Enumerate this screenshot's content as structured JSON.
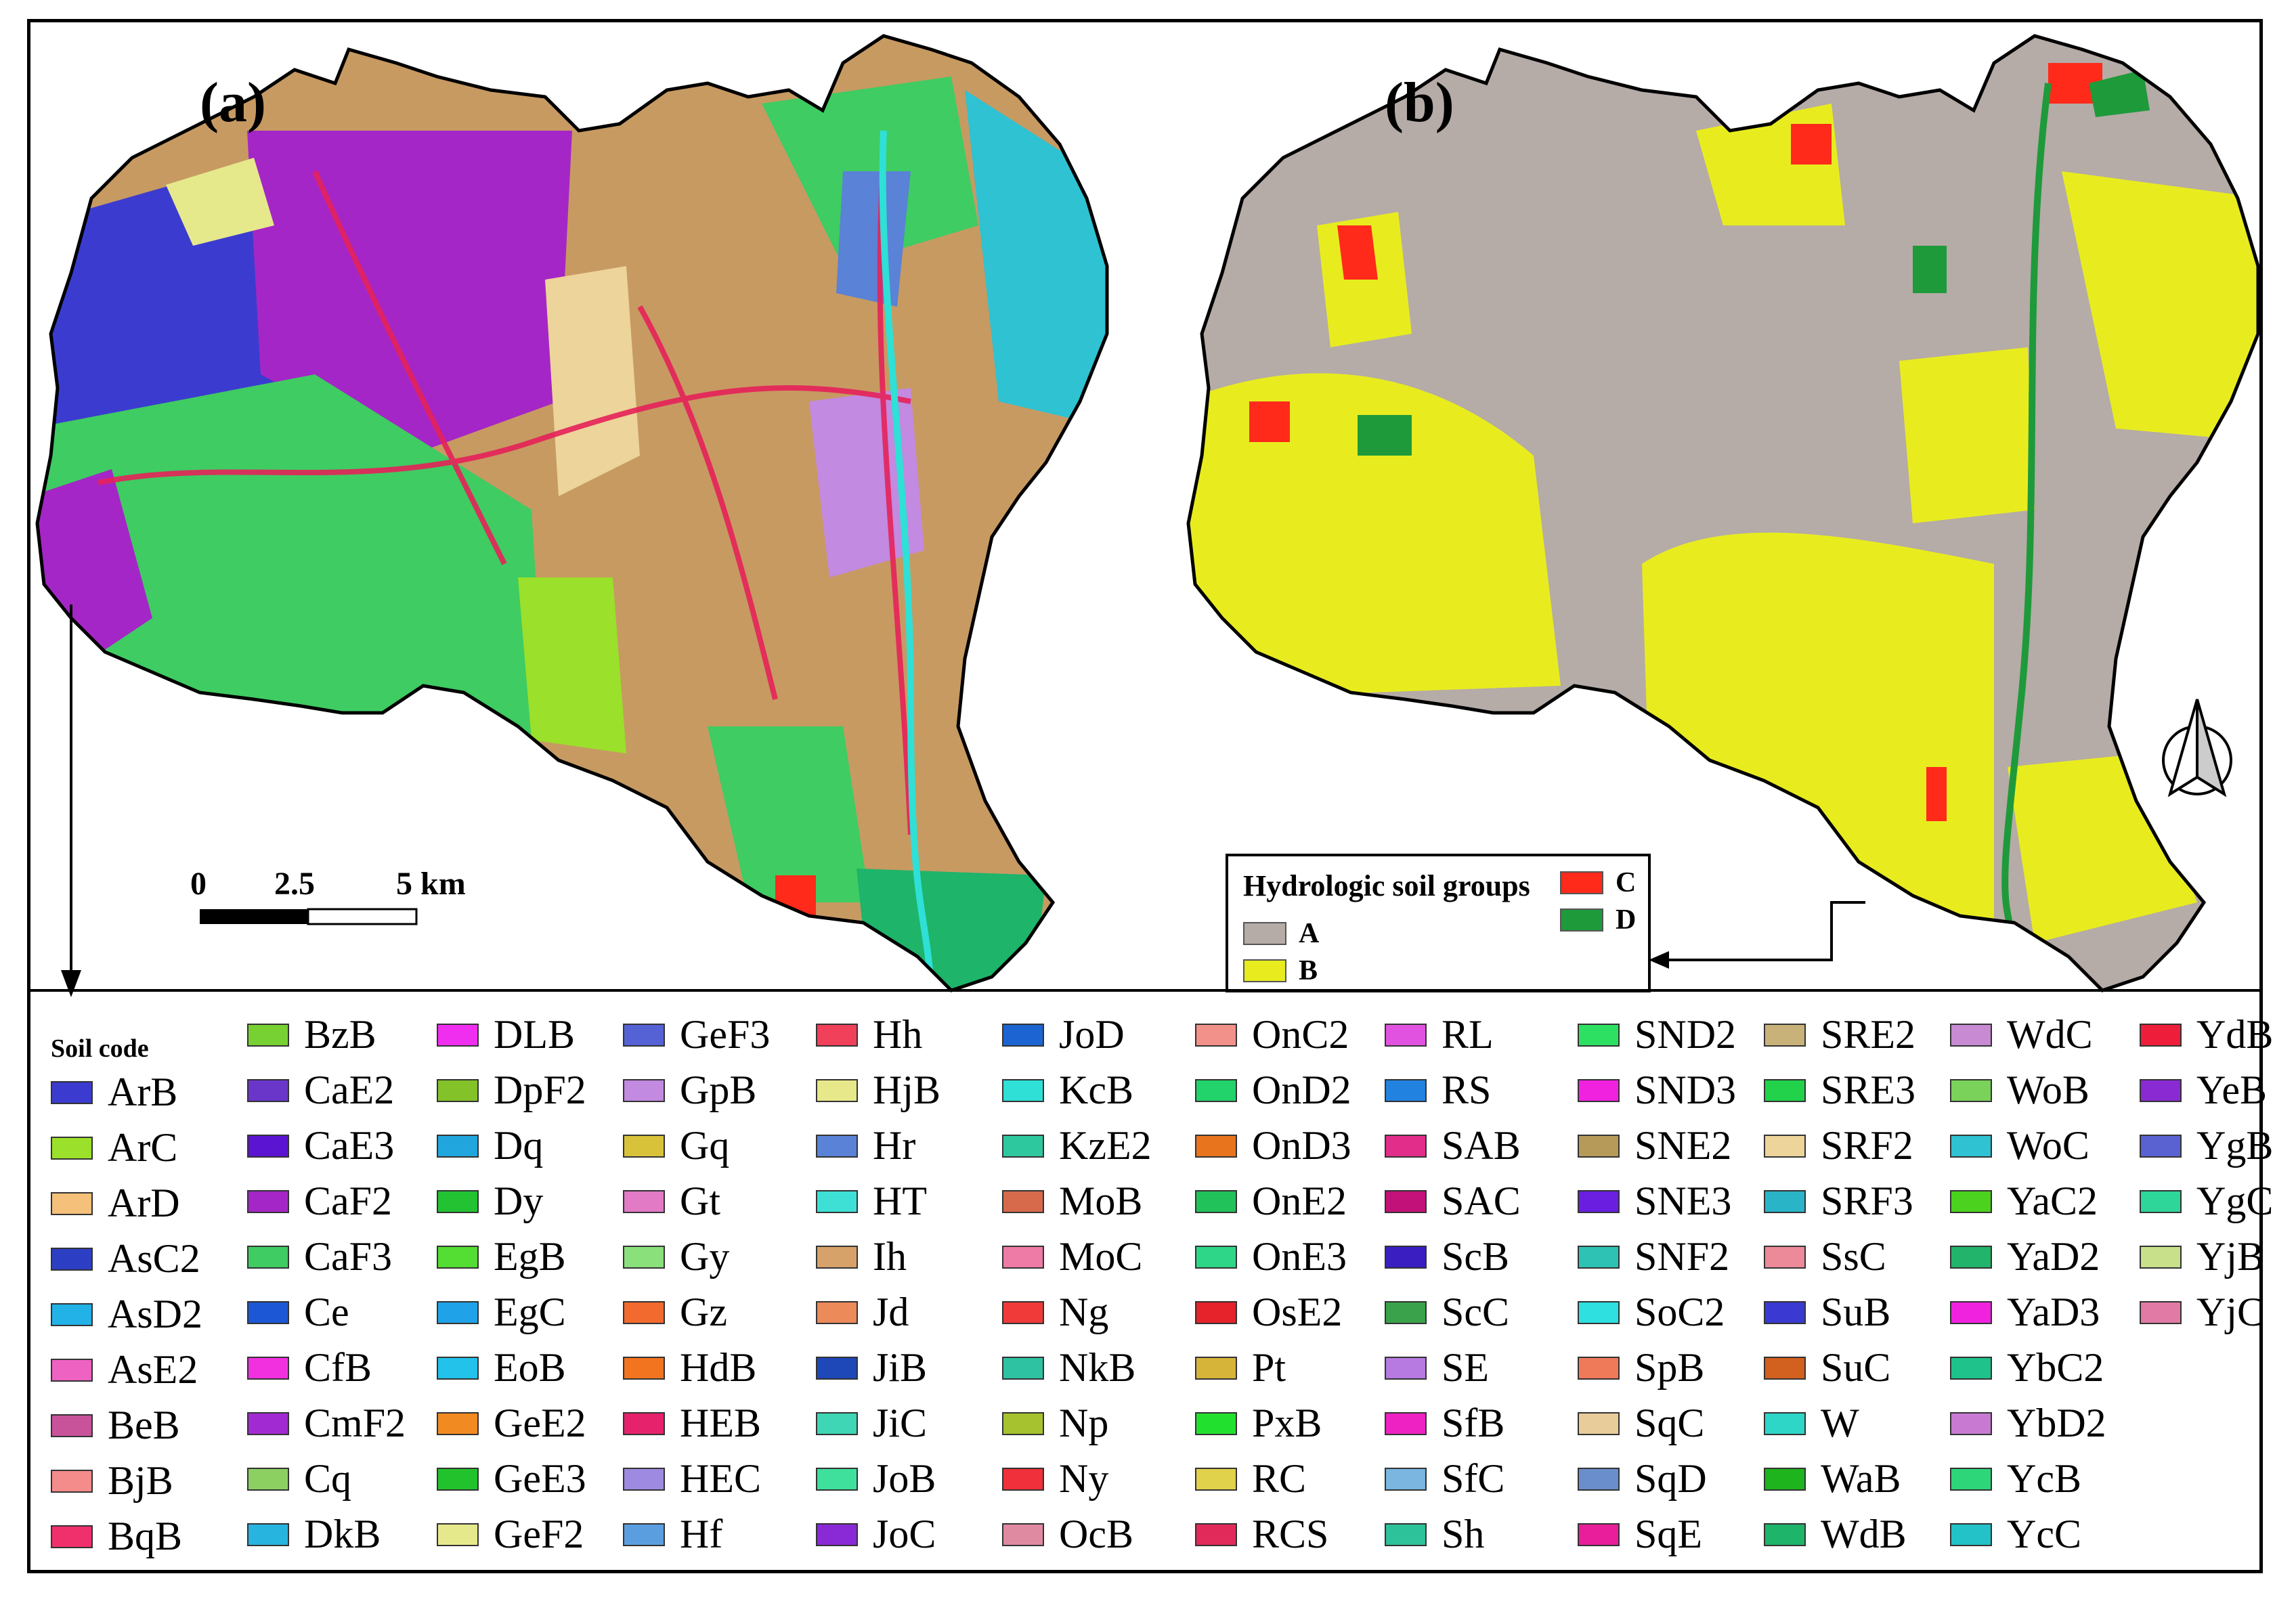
{
  "panels": {
    "a": {
      "label": "(a)"
    },
    "b": {
      "label": "(b)"
    }
  },
  "scale_bar": {
    "zero": "0",
    "mid": "2.5",
    "end": "5 km"
  },
  "hsg_legend": {
    "title": "Hydrologic soil groups",
    "items": [
      {
        "code": "A",
        "color": "#b5aba7"
      },
      {
        "code": "B",
        "color": "#e8ec1f"
      },
      {
        "code": "C",
        "color": "#ff2a1a"
      },
      {
        "code": "D",
        "color": "#1e9a3a"
      }
    ]
  },
  "soil_legend": {
    "title": "Soil code",
    "columns": [
      [
        {
          "code": "ArB",
          "color": "#3b3ccf"
        },
        {
          "code": "ArC",
          "color": "#9be02a"
        },
        {
          "code": "ArD",
          "color": "#f4c07a"
        },
        {
          "code": "AsC2",
          "color": "#2c3fc4"
        },
        {
          "code": "AsD2",
          "color": "#22b2e8"
        },
        {
          "code": "AsE2",
          "color": "#ee62c2"
        },
        {
          "code": "BeB",
          "color": "#c9539b"
        },
        {
          "code": "BjB",
          "color": "#f58c8c"
        },
        {
          "code": "BqB",
          "color": "#f0306c"
        }
      ],
      [
        {
          "code": "BzB",
          "color": "#78d132"
        },
        {
          "code": "CaE2",
          "color": "#6a36c9"
        },
        {
          "code": "CaE3",
          "color": "#5a14d2"
        },
        {
          "code": "CaF2",
          "color": "#a526c6"
        },
        {
          "code": "CaF3",
          "color": "#3fcc62"
        },
        {
          "code": "Ce",
          "color": "#1c58d6"
        },
        {
          "code": "CfB",
          "color": "#f230e0"
        },
        {
          "code": "CmF2",
          "color": "#a22ad2"
        },
        {
          "code": "Cq",
          "color": "#8cd062"
        },
        {
          "code": "DkB",
          "color": "#27b4df"
        }
      ],
      [
        {
          "code": "DLB",
          "color": "#f02ef0"
        },
        {
          "code": "DpF2",
          "color": "#84c22a"
        },
        {
          "code": "Dq",
          "color": "#22a6de"
        },
        {
          "code": "Dy",
          "color": "#22c232"
        },
        {
          "code": "EgB",
          "color": "#54dd32"
        },
        {
          "code": "EgC",
          "color": "#20a2e8"
        },
        {
          "code": "EoB",
          "color": "#22c2ea"
        },
        {
          "code": "GeE2",
          "color": "#f28a22"
        },
        {
          "code": "GeE3",
          "color": "#22c22c"
        },
        {
          "code": "GeF2",
          "color": "#e6e88c"
        }
      ],
      [
        {
          "code": "GeF3",
          "color": "#5462d6"
        },
        {
          "code": "GpB",
          "color": "#c28ae0"
        },
        {
          "code": "Gq",
          "color": "#d8c23a"
        },
        {
          "code": "Gt",
          "color": "#e27ac6"
        },
        {
          "code": "Gy",
          "color": "#8ae07a"
        },
        {
          "code": "Gz",
          "color": "#f26a2e"
        },
        {
          "code": "HdB",
          "color": "#f2741e"
        },
        {
          "code": "HEB",
          "color": "#e6226c"
        },
        {
          "code": "HEC",
          "color": "#9e8ae0"
        },
        {
          "code": "Hf",
          "color": "#5a9ee0"
        }
      ],
      [
        {
          "code": "Hh",
          "color": "#f0405a"
        },
        {
          "code": "HjB",
          "color": "#e6e88a"
        },
        {
          "code": "Hr",
          "color": "#5a82d6"
        },
        {
          "code": "HT",
          "color": "#3ee0d6"
        },
        {
          "code": "Ih",
          "color": "#d6a26a"
        },
        {
          "code": "Jd",
          "color": "#ec8a5a"
        },
        {
          "code": "JiB",
          "color": "#1e48b8"
        },
        {
          "code": "JiC",
          "color": "#3ed6b4"
        },
        {
          "code": "JoB",
          "color": "#3ee09c"
        },
        {
          "code": "JoC",
          "color": "#8a2ad6"
        }
      ],
      [
        {
          "code": "JoD",
          "color": "#1c64d2"
        },
        {
          "code": "KcB",
          "color": "#2ee0d6"
        },
        {
          "code": "KzE2",
          "color": "#2ec89e"
        },
        {
          "code": "MoB",
          "color": "#d66a4a"
        },
        {
          "code": "MoC",
          "color": "#ee7aa6"
        },
        {
          "code": "Ng",
          "color": "#f03a3a"
        },
        {
          "code": "NkB",
          "color": "#2ec2a2"
        },
        {
          "code": "Np",
          "color": "#a6c22e"
        },
        {
          "code": "Ny",
          "color": "#f0303a"
        },
        {
          "code": "OcB",
          "color": "#e08aa2"
        }
      ],
      [
        {
          "code": "OnC2",
          "color": "#f2908a"
        },
        {
          "code": "OnD2",
          "color": "#22d26a"
        },
        {
          "code": "OnD3",
          "color": "#e8741e"
        },
        {
          "code": "OnE2",
          "color": "#22c25a"
        },
        {
          "code": "OnE3",
          "color": "#2ed688"
        },
        {
          "code": "OsE2",
          "color": "#e6222a"
        },
        {
          "code": "Pt",
          "color": "#d6b43a"
        },
        {
          "code": "PxB",
          "color": "#22e02e"
        },
        {
          "code": "RC",
          "color": "#e0d24a"
        },
        {
          "code": "RCS",
          "color": "#e22a5a"
        }
      ],
      [
        {
          "code": "RL",
          "color": "#e252e0"
        },
        {
          "code": "RS",
          "color": "#2282e0"
        },
        {
          "code": "SAB",
          "color": "#e22e8a"
        },
        {
          "code": "SAC",
          "color": "#c2127a"
        },
        {
          "code": "ScB",
          "color": "#3a1ec2"
        },
        {
          "code": "ScC",
          "color": "#3aa24a"
        },
        {
          "code": "SE",
          "color": "#b67ae0"
        },
        {
          "code": "SfB",
          "color": "#ee22c2"
        },
        {
          "code": "SfC",
          "color": "#7ab6e0"
        },
        {
          "code": "Sh",
          "color": "#2ec29a"
        }
      ],
      [
        {
          "code": "SND2",
          "color": "#2ee062"
        },
        {
          "code": "SND3",
          "color": "#f022e0"
        },
        {
          "code": "SNE2",
          "color": "#b69a5a"
        },
        {
          "code": "SNE3",
          "color": "#6a1ee0"
        },
        {
          "code": "SNF2",
          "color": "#2ec2b4"
        },
        {
          "code": "SoC2",
          "color": "#2ee0e0"
        },
        {
          "code": "SpB",
          "color": "#ee7a5a"
        },
        {
          "code": "SqC",
          "color": "#e8cc9a"
        },
        {
          "code": "SqD",
          "color": "#6a8ecc"
        },
        {
          "code": "SqE",
          "color": "#e81e9a"
        }
      ],
      [
        {
          "code": "SRE2",
          "color": "#c8b27a"
        },
        {
          "code": "SRE3",
          "color": "#22d24a"
        },
        {
          "code": "SRF2",
          "color": "#ecd49a"
        },
        {
          "code": "SRF3",
          "color": "#2ab4c8"
        },
        {
          "code": "SsC",
          "color": "#ec8a9a"
        },
        {
          "code": "SuB",
          "color": "#3a3ad2"
        },
        {
          "code": "SuC",
          "color": "#d2601e"
        },
        {
          "code": "W",
          "color": "#2ed6c8"
        },
        {
          "code": "WaB",
          "color": "#1eb41e"
        },
        {
          "code": "WdB",
          "color": "#1eb46a"
        }
      ],
      [
        {
          "code": "WdC",
          "color": "#c88ad2"
        },
        {
          "code": "WoB",
          "color": "#7ad25a"
        },
        {
          "code": "WoC",
          "color": "#2ec2d2"
        },
        {
          "code": "YaC2",
          "color": "#4ad21e"
        },
        {
          "code": "YaD2",
          "color": "#22b46a"
        },
        {
          "code": "YaD3",
          "color": "#f022e0"
        },
        {
          "code": "YbC2",
          "color": "#1ec28a"
        },
        {
          "code": "YbD2",
          "color": "#c87ad2"
        },
        {
          "code": "YcB",
          "color": "#2ed67a"
        },
        {
          "code": "YcC",
          "color": "#22c2c8"
        }
      ],
      [
        {
          "code": "YdB",
          "color": "#ee1e3a"
        },
        {
          "code": "YeB",
          "color": "#8a2ad2"
        },
        {
          "code": "YgB",
          "color": "#5a62d2"
        },
        {
          "code": "YgC",
          "color": "#2ed69a"
        },
        {
          "code": "YjB",
          "color": "#c8e08a"
        },
        {
          "code": "YjC",
          "color": "#e27aa6"
        }
      ]
    ]
  }
}
